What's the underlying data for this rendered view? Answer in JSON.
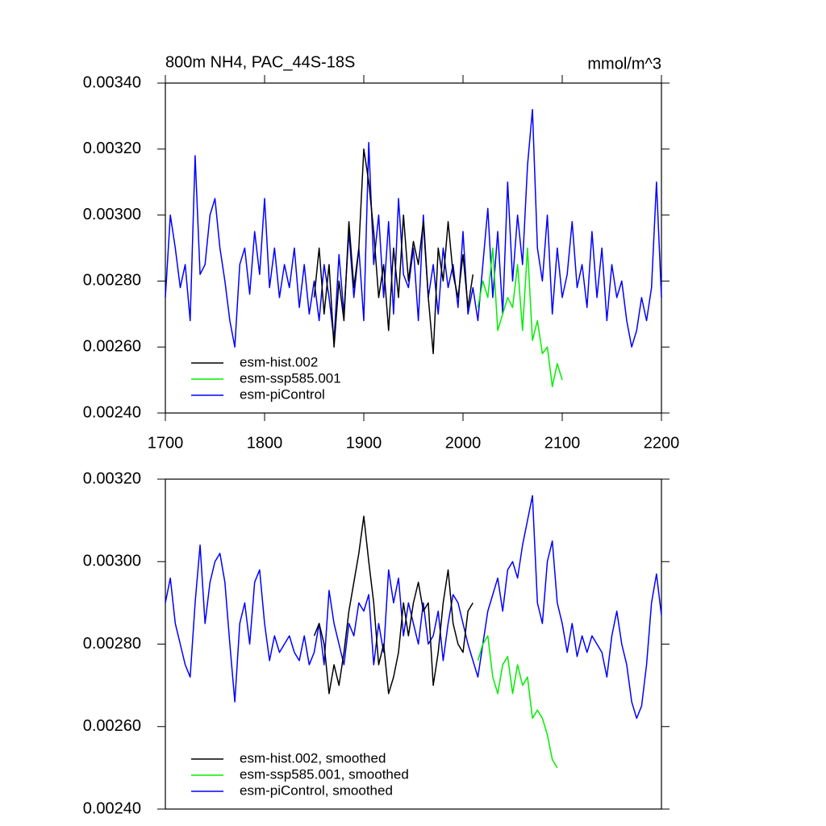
{
  "chart_data": [
    {
      "type": "line",
      "title": "800m NH4, PAC_44S-18S",
      "units": "mmol/m^3",
      "xlim": [
        1700,
        2200
      ],
      "xticks": [
        1700,
        1800,
        1900,
        2000,
        2100,
        2200
      ],
      "ylim": [
        0.0024,
        0.0034
      ],
      "yticks": [
        {
          "value": 0.0024,
          "label": "0.00240"
        },
        {
          "value": 0.0026,
          "label": "0.00260"
        },
        {
          "value": 0.0028,
          "label": "0.00280"
        },
        {
          "value": 0.003,
          "label": "0.00300"
        },
        {
          "value": 0.0032,
          "label": "0.00320"
        },
        {
          "value": 0.0034,
          "label": "0.00340"
        }
      ],
      "legend": "lower left",
      "series": [
        {
          "name": "esm-hist.002",
          "color": "#000000",
          "x": [
            1850,
            1855,
            1860,
            1865,
            1870,
            1875,
            1880,
            1885,
            1890,
            1895,
            1900,
            1905,
            1910,
            1915,
            1920,
            1925,
            1930,
            1935,
            1940,
            1945,
            1950,
            1955,
            1960,
            1965,
            1970,
            1975,
            1980,
            1985,
            1990,
            1995,
            2000,
            2005,
            2010
          ],
          "values": [
            0.00275,
            0.0029,
            0.0027,
            0.00285,
            0.0026,
            0.0028,
            0.00268,
            0.00298,
            0.00278,
            0.0029,
            0.0032,
            0.0031,
            0.00295,
            0.00275,
            0.00285,
            0.00265,
            0.0029,
            0.00275,
            0.003,
            0.0028,
            0.00292,
            0.00285,
            0.00298,
            0.00275,
            0.00258,
            0.0029,
            0.0028,
            0.00298,
            0.00282,
            0.00275,
            0.00288,
            0.00272,
            0.00282
          ]
        },
        {
          "name": "esm-ssp585.001",
          "color": "#00ee00",
          "x": [
            2015,
            2020,
            2025,
            2030,
            2035,
            2040,
            2045,
            2050,
            2055,
            2060,
            2065,
            2070,
            2075,
            2080,
            2085,
            2090,
            2095,
            2100
          ],
          "values": [
            0.00272,
            0.0028,
            0.00275,
            0.0029,
            0.00265,
            0.0027,
            0.00275,
            0.00272,
            0.00285,
            0.00265,
            0.0029,
            0.00262,
            0.00268,
            0.00258,
            0.0026,
            0.00248,
            0.00255,
            0.0025
          ]
        },
        {
          "name": "esm-piControl",
          "color": "#0000ff",
          "x": [
            1700,
            1705,
            1710,
            1715,
            1720,
            1725,
            1730,
            1735,
            1740,
            1745,
            1750,
            1755,
            1760,
            1765,
            1770,
            1775,
            1780,
            1785,
            1790,
            1795,
            1800,
            1805,
            1810,
            1815,
            1820,
            1825,
            1830,
            1835,
            1840,
            1845,
            1850,
            1855,
            1860,
            1865,
            1870,
            1875,
            1880,
            1885,
            1890,
            1895,
            1900,
            1905,
            1910,
            1915,
            1920,
            1925,
            1930,
            1935,
            1940,
            1945,
            1950,
            1955,
            1960,
            1965,
            1970,
            1975,
            1980,
            1985,
            1990,
            1995,
            2000,
            2005,
            2010,
            2015,
            2020,
            2025,
            2030,
            2035,
            2040,
            2045,
            2050,
            2055,
            2060,
            2065,
            2070,
            2075,
            2080,
            2085,
            2090,
            2095,
            2100,
            2105,
            2110,
            2115,
            2120,
            2125,
            2130,
            2135,
            2140,
            2145,
            2150,
            2155,
            2160,
            2165,
            2170,
            2175,
            2180,
            2185,
            2190,
            2195,
            2200
          ],
          "values": [
            0.00275,
            0.003,
            0.0029,
            0.00278,
            0.00285,
            0.00268,
            0.00318,
            0.00282,
            0.00285,
            0.003,
            0.00305,
            0.0029,
            0.0028,
            0.00268,
            0.0026,
            0.00285,
            0.0029,
            0.00276,
            0.00295,
            0.00282,
            0.00305,
            0.00278,
            0.0029,
            0.00275,
            0.00285,
            0.00278,
            0.0029,
            0.00272,
            0.00285,
            0.0027,
            0.0028,
            0.00268,
            0.00285,
            0.00275,
            0.00262,
            0.00288,
            0.0027,
            0.00295,
            0.00275,
            0.0029,
            0.00268,
            0.00322,
            0.00285,
            0.003,
            0.00275,
            0.00298,
            0.0027,
            0.00305,
            0.00282,
            0.00278,
            0.0029,
            0.00268,
            0.003,
            0.00275,
            0.00285,
            0.0027,
            0.0029,
            0.00278,
            0.00285,
            0.00272,
            0.00295,
            0.0027,
            0.00278,
            0.00268,
            0.00285,
            0.00302,
            0.00275,
            0.00295,
            0.0027,
            0.0031,
            0.0028,
            0.003,
            0.00285,
            0.00315,
            0.00332,
            0.0029,
            0.0028,
            0.003,
            0.0027,
            0.0029,
            0.00275,
            0.00282,
            0.00298,
            0.00278,
            0.00285,
            0.00272,
            0.00295,
            0.00275,
            0.0029,
            0.00268,
            0.00285,
            0.00275,
            0.0028,
            0.00268,
            0.0026,
            0.00265,
            0.00275,
            0.00268,
            0.00278,
            0.0031,
            0.00275
          ]
        }
      ]
    },
    {
      "type": "line",
      "xlim": [
        1700,
        2200
      ],
      "ylim": [
        0.0024,
        0.0032
      ],
      "yticks": [
        {
          "value": 0.0024,
          "label": "0.00240"
        },
        {
          "value": 0.0026,
          "label": "0.00260"
        },
        {
          "value": 0.0028,
          "label": "0.00280"
        },
        {
          "value": 0.003,
          "label": "0.00300"
        },
        {
          "value": 0.0032,
          "label": "0.00320"
        }
      ],
      "legend": "lower left",
      "series": [
        {
          "name": "esm-hist.002, smoothed",
          "color": "#000000",
          "x": [
            1850,
            1855,
            1860,
            1865,
            1870,
            1875,
            1880,
            1885,
            1890,
            1895,
            1900,
            1905,
            1910,
            1915,
            1920,
            1925,
            1930,
            1935,
            1940,
            1945,
            1950,
            1955,
            1960,
            1965,
            1970,
            1975,
            1980,
            1985,
            1990,
            1995,
            2000,
            2005,
            2010
          ],
          "values": [
            0.00282,
            0.00285,
            0.0028,
            0.00268,
            0.00275,
            0.0027,
            0.00278,
            0.00288,
            0.00295,
            0.00302,
            0.00311,
            0.003,
            0.0029,
            0.00275,
            0.0028,
            0.00268,
            0.00272,
            0.00278,
            0.0029,
            0.00282,
            0.0029,
            0.00295,
            0.00288,
            0.0029,
            0.0027,
            0.00278,
            0.0029,
            0.00298,
            0.00285,
            0.0028,
            0.00278,
            0.00288,
            0.0029
          ]
        },
        {
          "name": "esm-ssp585.001, smoothed",
          "color": "#00ee00",
          "x": [
            2015,
            2020,
            2025,
            2030,
            2035,
            2040,
            2045,
            2050,
            2055,
            2060,
            2065,
            2070,
            2075,
            2080,
            2085,
            2090,
            2095
          ],
          "values": [
            0.00276,
            0.0028,
            0.00282,
            0.00272,
            0.00268,
            0.00275,
            0.00277,
            0.00268,
            0.00275,
            0.0027,
            0.00272,
            0.00262,
            0.00264,
            0.00262,
            0.00258,
            0.00252,
            0.0025
          ]
        },
        {
          "name": "esm-piControl, smoothed",
          "color": "#0000ff",
          "x": [
            1700,
            1705,
            1710,
            1715,
            1720,
            1725,
            1730,
            1735,
            1740,
            1745,
            1750,
            1755,
            1760,
            1765,
            1770,
            1775,
            1780,
            1785,
            1790,
            1795,
            1800,
            1805,
            1810,
            1815,
            1820,
            1825,
            1830,
            1835,
            1840,
            1845,
            1850,
            1855,
            1860,
            1865,
            1870,
            1875,
            1880,
            1885,
            1890,
            1895,
            1900,
            1905,
            1910,
            1915,
            1920,
            1925,
            1930,
            1935,
            1940,
            1945,
            1950,
            1955,
            1960,
            1965,
            1970,
            1975,
            1980,
            1985,
            1990,
            1995,
            2000,
            2005,
            2010,
            2015,
            2020,
            2025,
            2030,
            2035,
            2040,
            2045,
            2050,
            2055,
            2060,
            2065,
            2070,
            2075,
            2080,
            2085,
            2090,
            2095,
            2100,
            2105,
            2110,
            2115,
            2120,
            2125,
            2130,
            2135,
            2140,
            2145,
            2150,
            2155,
            2160,
            2165,
            2170,
            2175,
            2180,
            2185,
            2190,
            2195,
            2200
          ],
          "values": [
            0.0029,
            0.00296,
            0.00285,
            0.0028,
            0.00275,
            0.00272,
            0.0029,
            0.00304,
            0.00285,
            0.00295,
            0.003,
            0.00302,
            0.00295,
            0.0028,
            0.00266,
            0.00285,
            0.0029,
            0.0028,
            0.00295,
            0.00298,
            0.00285,
            0.00276,
            0.00282,
            0.00278,
            0.0028,
            0.00282,
            0.00278,
            0.00276,
            0.00282,
            0.00275,
            0.00278,
            0.00285,
            0.00275,
            0.00293,
            0.00285,
            0.0028,
            0.00275,
            0.00285,
            0.00282,
            0.0029,
            0.00288,
            0.00292,
            0.00275,
            0.00285,
            0.00278,
            0.00298,
            0.0029,
            0.00296,
            0.00282,
            0.0029,
            0.00285,
            0.0028,
            0.0029,
            0.0028,
            0.00282,
            0.00288,
            0.00276,
            0.00285,
            0.00292,
            0.0029,
            0.00285,
            0.0028,
            0.00276,
            0.00272,
            0.0028,
            0.00288,
            0.00292,
            0.00296,
            0.00288,
            0.00298,
            0.003,
            0.00296,
            0.00304,
            0.0031,
            0.00316,
            0.0029,
            0.00285,
            0.003,
            0.00305,
            0.0029,
            0.00285,
            0.00278,
            0.00285,
            0.00277,
            0.00282,
            0.00278,
            0.00282,
            0.0028,
            0.00278,
            0.00272,
            0.00282,
            0.00288,
            0.0028,
            0.00275,
            0.00266,
            0.00262,
            0.00265,
            0.00275,
            0.0029,
            0.00297,
            0.00287
          ]
        }
      ]
    }
  ]
}
